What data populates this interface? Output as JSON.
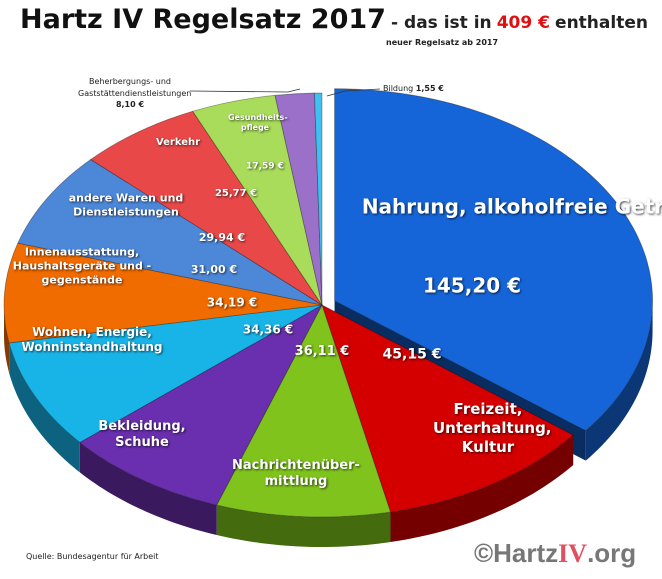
{
  "header": {
    "title": "Hartz IV Regelsatz 2017",
    "subtitle_prefix": "- das ist in",
    "total": "409 €",
    "subtitle_suffix": "enthalten",
    "note": "neuer Regelsatz ab 2017"
  },
  "footer": {
    "source": "Quelle: Bundesagentur  für Arbeit",
    "brand_prefix": "©Hartz",
    "brand_iv": "IV",
    "brand_suffix": ".org"
  },
  "chart_data": {
    "type": "pie",
    "style": "3d-exploded",
    "title": "Hartz IV Regelsatz 2017",
    "total": 409,
    "unit": "€",
    "slices": [
      {
        "label": "Nahrung, alkoholfreie Getränke",
        "value": 145.2,
        "value_label": "145,20 €",
        "color": "#1565d8"
      },
      {
        "label": "Freizeit, Unterhaltung, Kultur",
        "value": 45.15,
        "value_label": "45,15 €",
        "color": "#d40000"
      },
      {
        "label": "Nachrichtenüber-mittlung",
        "value": 36.11,
        "value_label": "36,11 €",
        "color": "#7fc31c"
      },
      {
        "label": "Bekleidung, Schuhe",
        "value": 34.36,
        "value_label": "34,36 €",
        "color": "#6a2fae"
      },
      {
        "label": "Wohnen, Energie, Wohninstandhaltung",
        "value": 34.19,
        "value_label": "34,19 €",
        "color": "#18b4e8"
      },
      {
        "label": "Innenausstattung, Haushaltsgeräte und -gegenstände",
        "value": 31.0,
        "value_label": "31,00 €",
        "color": "#f06b00"
      },
      {
        "label": "andere Waren und Dienstleistungen",
        "value": 29.94,
        "value_label": "29,94 €",
        "color": "#4d88d8"
      },
      {
        "label": "Verkehr",
        "value": 25.77,
        "value_label": "25,77 €",
        "color": "#e84848"
      },
      {
        "label": "Gesundheits-pflege",
        "value": 17.59,
        "value_label": "17,59 €",
        "color": "#a8dc5a"
      },
      {
        "label": "Beherbergungs- und Gaststättendienstleistungen",
        "value": 8.1,
        "value_label": "8,10 €",
        "color": "#9a70c8"
      },
      {
        "label": "Bildung",
        "value": 1.55,
        "value_label": "1,55 €",
        "color": "#40c0f0"
      }
    ]
  }
}
